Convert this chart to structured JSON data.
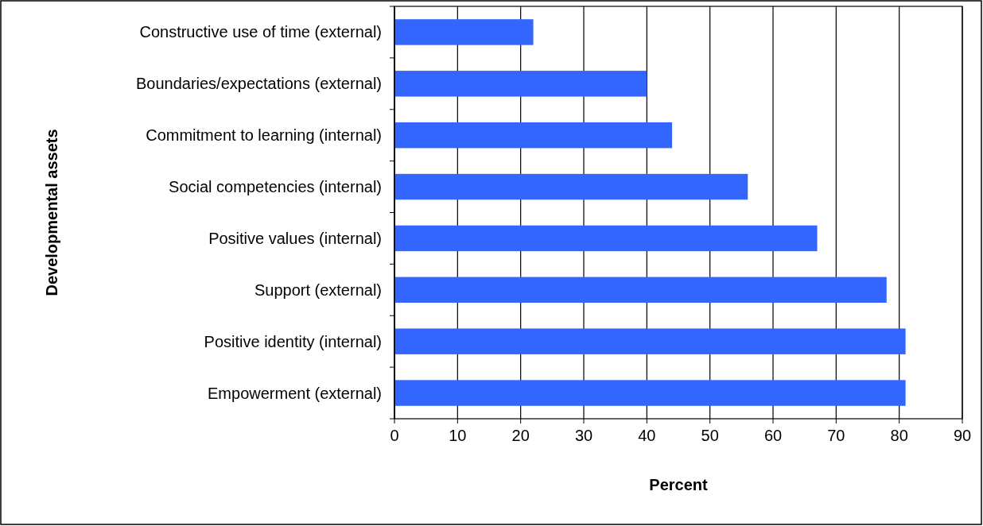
{
  "chart_data": {
    "type": "bar",
    "orientation": "horizontal",
    "ylabel": "Developmental assets",
    "xlabel": "Percent",
    "categories": [
      "Constructive use of time (external)",
      "Boundaries/expectations (external)",
      "Commitment to learning (internal)",
      "Social competencies (internal)",
      "Positive values (internal)",
      "Support (external)",
      "Positive identity (internal)",
      "Empowerment (external)"
    ],
    "values": [
      22,
      40,
      44,
      56,
      67,
      78,
      81,
      81
    ],
    "color": "#3366ff",
    "xlim": [
      0,
      90
    ],
    "xticks": [
      0,
      10,
      20,
      30,
      40,
      50,
      60,
      70,
      80,
      90
    ],
    "grid": "x"
  }
}
